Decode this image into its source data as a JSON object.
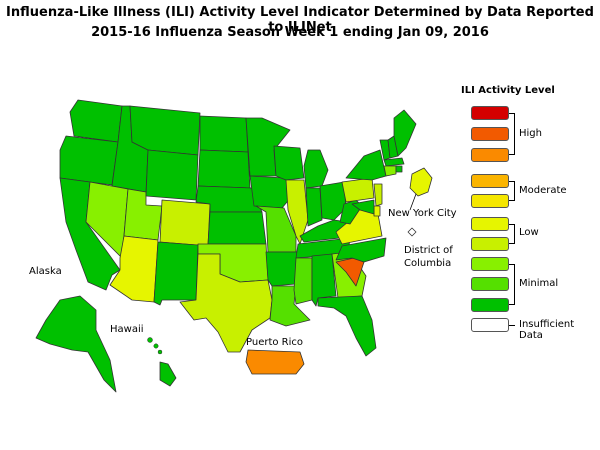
{
  "title_line1": "Influenza-Like Illness (ILI) Activity Level Indicator Determined by Data Reported to ILINet",
  "title_line2": "2015-16  Influenza Season Week  1 ending Jan 09, 2016",
  "labels": {
    "alaska": "Alaska",
    "hawaii": "Hawaii",
    "puerto_rico": "Puerto Rico",
    "nyc": "New York City",
    "dc_line1": "District of",
    "dc_line2": "Columbia"
  },
  "legend": {
    "title": "ILI Activity Level",
    "levels": [
      {
        "level": 10,
        "color": "#d40000"
      },
      {
        "level": 9,
        "color": "#f25a00"
      },
      {
        "level": 8,
        "color": "#fa8a00"
      },
      {
        "level": 7,
        "color": "#fab400"
      },
      {
        "level": 6,
        "color": "#f5e600"
      },
      {
        "level": 5,
        "color": "#e6f500"
      },
      {
        "level": 4,
        "color": "#c8f000"
      },
      {
        "level": 3,
        "color": "#88f000"
      },
      {
        "level": 2,
        "color": "#55e000"
      },
      {
        "level": 1,
        "color": "#00c000"
      },
      {
        "level": 0,
        "color": "#ffffff"
      }
    ],
    "groups": {
      "high": "High",
      "moderate": "Moderate",
      "low": "Low",
      "minimal": "Minimal",
      "insufficient": "Insufficient Data"
    }
  },
  "state_levels": {
    "WA": 1,
    "OR": 1,
    "CA": 1,
    "ID": 1,
    "NV": 3,
    "UT": 3,
    "AZ": 5,
    "MT": 1,
    "WY": 1,
    "CO": 4,
    "NM": 1,
    "ND": 1,
    "SD": 1,
    "NE": 1,
    "KS": 1,
    "OK": 3,
    "TX": 4,
    "MN": 1,
    "IA": 1,
    "MO": 2,
    "AR": 1,
    "LA": 2,
    "WI": 1,
    "IL": 4,
    "MI": 1,
    "IN": 1,
    "OH": 1,
    "KY": 1,
    "TN": 1,
    "MS": 2,
    "AL": 1,
    "GA": 3,
    "FL": 1,
    "SC": 9,
    "NC": 1,
    "VA": 5,
    "WV": 1,
    "PA": 4,
    "NY": 1,
    "VT": 1,
    "NH": 1,
    "ME": 1,
    "MA": 1,
    "CT": 3,
    "RI": 1,
    "NJ": 4,
    "DE": 5,
    "MD": 1,
    "NYC": 5,
    "DC": 0,
    "AK": 1,
    "HI": 1,
    "PR": 8
  }
}
